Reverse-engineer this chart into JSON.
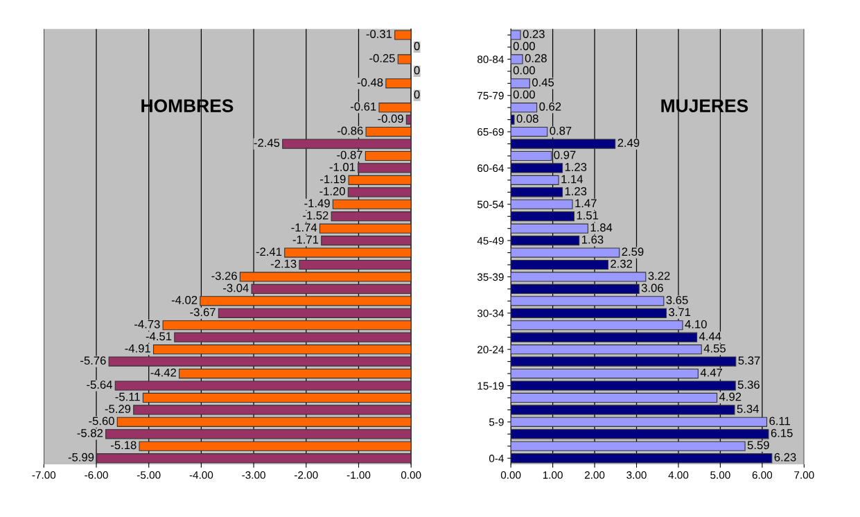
{
  "chart_data": [
    {
      "type": "bar",
      "orientation": "horizontal",
      "annotations": [
        "HOMBRES"
      ],
      "tick_labels": "x",
      "grid": "x",
      "categories": [
        null,
        null,
        null,
        null,
        null,
        null,
        null,
        null,
        null,
        null,
        null,
        null,
        null,
        null,
        null,
        null,
        null,
        null,
        null,
        null,
        null,
        null,
        null,
        null,
        null,
        null,
        null,
        null,
        null,
        null,
        null,
        null,
        null,
        null,
        null,
        null
      ],
      "values": [
        -0.31,
        0,
        -0.25,
        0,
        -0.48,
        0,
        -0.61,
        -0.09,
        -0.86,
        -2.45,
        -0.87,
        -1.01,
        -1.19,
        -1.2,
        -1.49,
        -1.52,
        -1.74,
        -1.71,
        -2.41,
        -2.13,
        -3.26,
        -3.04,
        -4.02,
        -3.67,
        -4.73,
        -4.51,
        -4.91,
        -5.76,
        -4.42,
        -5.64,
        -5.11,
        -5.29,
        -5.6,
        -5.82,
        -5.18,
        -5.99
      ],
      "value_labels": [
        "-0.31",
        "0",
        "-0.25",
        "0",
        "-0.48",
        "0",
        "-0.61",
        "-0.09",
        "-0.86",
        "-2.45",
        "-0.87",
        "-1.01",
        "-1.19",
        "-1.20",
        "-1.49",
        "-1.52",
        "-1.74",
        "-1.71",
        "-2.41",
        "-2.13",
        "-3.26",
        "-3.04",
        "-4.02",
        "-3.67",
        "-4.73",
        "-4.51",
        "-4.91",
        "-5.76",
        "-4.42",
        "-5.64",
        "-5.11",
        "-5.29",
        "-5.60",
        "-5.82",
        "-5.18",
        "-5.99"
      ],
      "colors": [
        "#ff6600",
        "#993366",
        "#ff6600",
        "#993366",
        "#ff6600",
        "#993366",
        "#ff6600",
        "#993366",
        "#ff6600",
        "#993366",
        "#ff6600",
        "#993366",
        "#ff6600",
        "#993366",
        "#ff6600",
        "#993366",
        "#ff6600",
        "#993366",
        "#ff6600",
        "#993366",
        "#ff6600",
        "#993366",
        "#ff6600",
        "#993366",
        "#ff6600",
        "#993366",
        "#ff6600",
        "#993366",
        "#ff6600",
        "#993366",
        "#ff6600",
        "#993366",
        "#ff6600",
        "#993366",
        "#ff6600",
        "#993366"
      ],
      "xlim": [
        -7,
        0
      ],
      "xticks": [
        {
          "value": -7,
          "label": "-7.00"
        },
        {
          "value": -6,
          "label": "-6.00"
        },
        {
          "value": -5,
          "label": "-5.00"
        },
        {
          "value": -4,
          "label": "-4.00"
        },
        {
          "value": -3,
          "label": "-3.00"
        },
        {
          "value": -2,
          "label": "-2.00"
        },
        {
          "value": -1,
          "label": "-1.00"
        },
        {
          "value": 0,
          "label": "0.00"
        }
      ]
    },
    {
      "type": "bar",
      "orientation": "horizontal",
      "annotations": [
        "MUJERES"
      ],
      "grid": "x",
      "categories": [
        null,
        null,
        "80-84",
        null,
        null,
        "75-79",
        null,
        null,
        "65-69",
        null,
        null,
        "60-64",
        null,
        null,
        "50-54",
        null,
        null,
        "45-49",
        null,
        null,
        "35-39",
        null,
        null,
        "30-34",
        null,
        null,
        "20-24",
        null,
        null,
        "15-19",
        null,
        null,
        "5-9",
        null,
        null,
        "0-4"
      ],
      "values": [
        0.23,
        0,
        0.28,
        0,
        0.45,
        0,
        0.62,
        0.08,
        0.87,
        2.49,
        0.97,
        1.23,
        1.14,
        1.23,
        1.47,
        1.51,
        1.84,
        1.63,
        2.59,
        2.32,
        3.22,
        3.06,
        3.65,
        3.71,
        4.1,
        4.44,
        4.55,
        5.37,
        4.47,
        5.36,
        4.92,
        5.34,
        6.11,
        6.15,
        5.59,
        6.23
      ],
      "value_labels": [
        "0.23",
        "0.00",
        "0.28",
        "0.00",
        "0.45",
        "0.00",
        "0.62",
        "0.08",
        "0.87",
        "2.49",
        "0.97",
        "1.23",
        "1.14",
        "1.23",
        "1.47",
        "1.51",
        "1.84",
        "1.63",
        "2.59",
        "2.32",
        "3.22",
        "3.06",
        "3.65",
        "3.71",
        "4.10",
        "4.44",
        "4.55",
        "5.37",
        "4.47",
        "5.36",
        "4.92",
        "5.34",
        "6.11",
        "6.15",
        "5.59",
        "6.23"
      ],
      "colors": [
        "#9999ff",
        "#000080",
        "#9999ff",
        "#000080",
        "#9999ff",
        "#000080",
        "#9999ff",
        "#000080",
        "#9999ff",
        "#000080",
        "#9999ff",
        "#000080",
        "#9999ff",
        "#000080",
        "#9999ff",
        "#000080",
        "#9999ff",
        "#000080",
        "#9999ff",
        "#000080",
        "#9999ff",
        "#000080",
        "#9999ff",
        "#000080",
        "#9999ff",
        "#000080",
        "#9999ff",
        "#000080",
        "#9999ff",
        "#000080",
        "#9999ff",
        "#000080",
        "#9999ff",
        "#000080",
        "#9999ff",
        "#000080"
      ],
      "xlim": [
        0,
        7
      ],
      "xticks": [
        {
          "value": 0,
          "label": "0.00"
        },
        {
          "value": 1,
          "label": "1.00"
        },
        {
          "value": 2,
          "label": "2.00"
        },
        {
          "value": 3,
          "label": "3.00"
        },
        {
          "value": 4,
          "label": "4.00"
        },
        {
          "value": 5,
          "label": "5.00"
        },
        {
          "value": 6,
          "label": "6.00"
        },
        {
          "value": 7,
          "label": "7.00"
        }
      ]
    }
  ]
}
